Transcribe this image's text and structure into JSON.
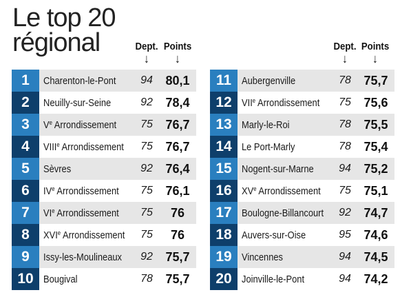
{
  "title": {
    "line1": "Le top 20",
    "line2": "régional"
  },
  "headers": {
    "dept": "Dept.",
    "points": "Points",
    "arrow": "↓"
  },
  "left": [
    {
      "rank": "1",
      "name": "Charenton-le-Pont",
      "sup": "",
      "suffix": "",
      "dept": "94",
      "points": "80,1"
    },
    {
      "rank": "2",
      "name": "Neuilly-sur-Seine",
      "sup": "",
      "suffix": "",
      "dept": "92",
      "points": "78,4"
    },
    {
      "rank": "3",
      "name": "V",
      "sup": "e",
      "suffix": " Arrondissement",
      "dept": "75",
      "points": "76,7"
    },
    {
      "rank": "4",
      "name": "VIII",
      "sup": "e",
      "suffix": " Arrondissement",
      "dept": "75",
      "points": "76,7"
    },
    {
      "rank": "5",
      "name": "Sèvres",
      "sup": "",
      "suffix": "",
      "dept": "92",
      "points": "76,4"
    },
    {
      "rank": "6",
      "name": "IV",
      "sup": "e",
      "suffix": " Arrondissement",
      "dept": "75",
      "points": "76,1"
    },
    {
      "rank": "7",
      "name": "VI",
      "sup": "e",
      "suffix": " Arrondissement",
      "dept": "75",
      "points": "76"
    },
    {
      "rank": "8",
      "name": "XVI",
      "sup": "e",
      "suffix": " Arrondissement",
      "dept": "75",
      "points": "76"
    },
    {
      "rank": "9",
      "name": "Issy-les-Moulineaux",
      "sup": "",
      "suffix": "",
      "dept": "92",
      "points": "75,7"
    },
    {
      "rank": "10",
      "name": "Bougival",
      "sup": "",
      "suffix": "",
      "dept": "78",
      "points": "75,7"
    }
  ],
  "right": [
    {
      "rank": "11",
      "name": "Aubergenville",
      "sup": "",
      "suffix": "",
      "dept": "78",
      "points": "75,7"
    },
    {
      "rank": "12",
      "name": "VII",
      "sup": "e",
      "suffix": " Arrondissement",
      "dept": "75",
      "points": "75,6"
    },
    {
      "rank": "13",
      "name": "Marly-le-Roi",
      "sup": "",
      "suffix": "",
      "dept": "78",
      "points": "75,5"
    },
    {
      "rank": "14",
      "name": "Le Port-Marly",
      "sup": "",
      "suffix": "",
      "dept": "78",
      "points": "75,4"
    },
    {
      "rank": "15",
      "name": "Nogent-sur-Marne",
      "sup": "",
      "suffix": "",
      "dept": "94",
      "points": "75,2"
    },
    {
      "rank": "16",
      "name": "XV",
      "sup": "e",
      "suffix": " Arrondissement",
      "dept": "75",
      "points": "75,1"
    },
    {
      "rank": "17",
      "name": "Boulogne-Billancourt",
      "sup": "",
      "suffix": "",
      "dept": "92",
      "points": "74,7"
    },
    {
      "rank": "18",
      "name": "Auvers-sur-Oise",
      "sup": "",
      "suffix": "",
      "dept": "95",
      "points": "74,6"
    },
    {
      "rank": "19",
      "name": "Vincennes",
      "sup": "",
      "suffix": "",
      "dept": "94",
      "points": "74,5"
    },
    {
      "rank": "20",
      "name": "Joinville-le-Pont",
      "sup": "",
      "suffix": "",
      "dept": "94",
      "points": "74,2"
    }
  ],
  "colors": {
    "rank_light": "#2a7fbf",
    "rank_dark": "#0e3f6b",
    "stripe": "#e6e6e6"
  }
}
